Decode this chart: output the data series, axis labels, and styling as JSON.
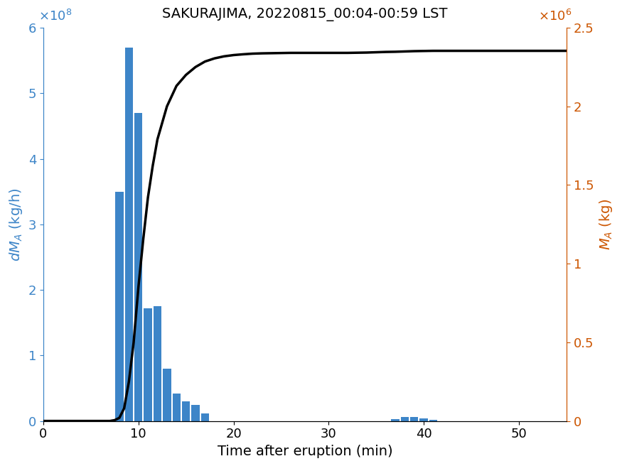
{
  "title": "SAKURAJIMA, 20220815_00:04-00:59 LST",
  "xlabel": "Time after eruption (min)",
  "ylabel_left": "dM_A (kg/h)",
  "ylabel_right": "M_A (kg)",
  "bar_centers": [
    8,
    9,
    10,
    11,
    12,
    13,
    14,
    15,
    16,
    17,
    18,
    19,
    20,
    21,
    22,
    23,
    24,
    25,
    37,
    38,
    39,
    40,
    41
  ],
  "bar_heights": [
    350000000.0,
    570000000.0,
    470000000.0,
    172000000.0,
    175000000.0,
    80000000.0,
    42000000.0,
    30000000.0,
    25000000.0,
    12000000.0,
    0,
    0,
    0,
    0,
    0,
    0,
    0,
    0,
    3000000.0,
    6000000.0,
    6000000.0,
    3500000.0,
    2000000.0
  ],
  "bar_width": 0.85,
  "bar_color": "#3d85c8",
  "line_color": "#000000",
  "line_x": [
    0,
    1,
    2,
    3,
    4,
    5,
    6,
    7,
    7.5,
    8,
    8.5,
    9,
    9.5,
    10,
    10.5,
    11,
    11.5,
    12,
    13,
    14,
    15,
    16,
    17,
    18,
    19,
    20,
    21,
    22,
    23,
    24,
    25,
    26,
    27,
    28,
    29,
    30,
    31,
    32,
    33,
    34,
    35,
    36,
    37,
    38,
    39,
    40,
    41,
    42,
    43,
    44,
    45,
    46,
    47,
    48,
    49,
    50,
    51,
    52,
    53,
    54,
    55
  ],
  "line_y": [
    0,
    0,
    0,
    0,
    0,
    0,
    0,
    0,
    5000.0,
    20000.0,
    80000.0,
    250000.0,
    500000.0,
    850000.0,
    1150000.0,
    1420000.0,
    1620000.0,
    1790000.0,
    2000000.0,
    2130000.0,
    2200000.0,
    2250000.0,
    2285000.0,
    2305000.0,
    2318000.0,
    2326000.0,
    2331000.0,
    2335000.0,
    2337000.0,
    2338000.0,
    2339000.0,
    2340000.0,
    2340000.0,
    2340000.0,
    2340000.0,
    2340000.0,
    2340000.0,
    2340000.0,
    2341000.0,
    2342000.0,
    2344000.0,
    2346000.0,
    2347000.0,
    2349000.0,
    2351000.0,
    2352000.0,
    2353000.0,
    2353000.0,
    2353000.0,
    2353000.0,
    2353000.0,
    2353000.0,
    2353000.0,
    2353000.0,
    2353000.0,
    2353000.0,
    2353000.0,
    2353000.0,
    2353000.0,
    2353000.0,
    2353000.0
  ],
  "xlim": [
    0,
    55
  ],
  "ylim_left": [
    0,
    600000000.0
  ],
  "ylim_right": [
    0,
    2500000.0
  ],
  "xticks": [
    0,
    10,
    20,
    30,
    40,
    50
  ],
  "yticks_left": [
    0,
    100000000.0,
    200000000.0,
    300000000.0,
    400000000.0,
    500000000.0,
    600000000.0
  ],
  "yticks_right": [
    0,
    500000.0,
    1000000.0,
    1500000.0,
    2000000.0,
    2500000.0
  ],
  "ytick_labels_left": [
    "0",
    "1",
    "2",
    "3",
    "4",
    "5",
    "6"
  ],
  "ytick_labels_right": [
    "0",
    "0.5",
    "1",
    "1.5",
    "2",
    "2.5"
  ],
  "left_axis_color": "#3d85c8",
  "right_axis_color": "#cc5500",
  "title_fontsize": 14,
  "label_fontsize": 14,
  "tick_fontsize": 13,
  "line_width": 2.5
}
